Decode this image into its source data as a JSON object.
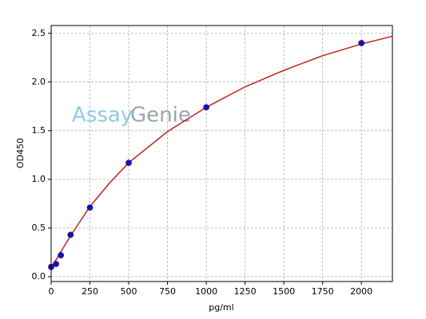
{
  "chart_data": {
    "type": "scatter",
    "watermark": [
      "Assay",
      "Genie"
    ],
    "xlabel": "pg/ml",
    "ylabel": "OD450",
    "xlim": [
      0,
      2200
    ],
    "ylim": [
      -0.05,
      2.58
    ],
    "xticks": [
      0,
      250,
      500,
      750,
      1000,
      1250,
      1500,
      1750,
      2000
    ],
    "yticks": [
      {
        "value": 0,
        "label": "0.0"
      },
      0.5,
      {
        "value": 1,
        "label": "1.0"
      },
      1.5,
      {
        "value": 2,
        "label": "2.0"
      },
      2.5
    ],
    "grid": true,
    "series": [
      {
        "type": "scatter",
        "color": "#1010c8",
        "x": [
          0,
          31.25,
          62.5,
          125,
          250,
          500,
          1000,
          2000
        ],
        "values": [
          0.1,
          0.13,
          0.22,
          0.43,
          0.71,
          1.17,
          1.74,
          2.4
        ]
      },
      {
        "type": "line",
        "color": "#c0201c",
        "x": [
          0,
          125,
          250,
          375,
          500,
          750,
          1000,
          1250,
          1500,
          1750,
          2000,
          2200
        ],
        "values": [
          0.09,
          0.42,
          0.72,
          0.96,
          1.17,
          1.49,
          1.74,
          1.95,
          2.12,
          2.27,
          2.39,
          2.47
        ]
      }
    ]
  }
}
